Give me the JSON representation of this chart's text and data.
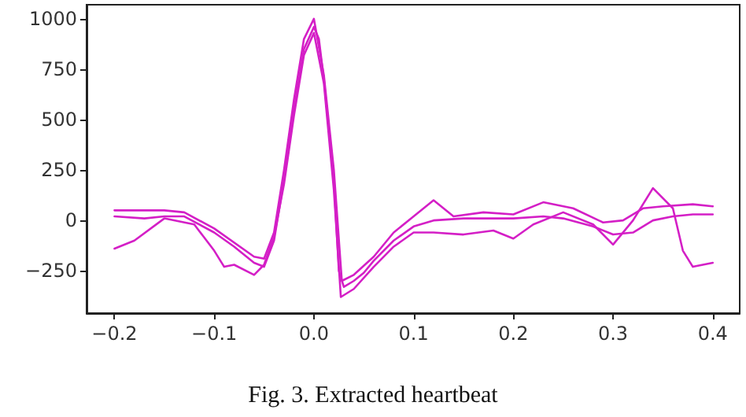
{
  "chart_data": {
    "type": "line",
    "annotations": [
      "Fig. 3. Extracted heartbeat"
    ],
    "xlim": [
      -0.228,
      0.427
    ],
    "ylim": [
      -460,
      1070
    ],
    "xticks": [
      {
        "value": -0.2,
        "label": "−0.2"
      },
      {
        "value": -0.1,
        "label": "−0.1"
      },
      {
        "value": 0,
        "label": "0.0"
      },
      {
        "value": 0.1,
        "label": "0.1"
      },
      {
        "value": 0.2,
        "label": "0.2"
      },
      {
        "value": 0.3,
        "label": "0.3"
      },
      {
        "value": 0.4,
        "label": "0.4"
      }
    ],
    "yticks": [
      {
        "value": -250,
        "label": "−250"
      },
      0,
      250,
      500,
      750,
      1000
    ],
    "grid": false,
    "marker": "none",
    "line_style": "solid",
    "series": [
      {
        "color": "#d41fc6",
        "x": [
          -0.2,
          -0.17,
          -0.15,
          -0.13,
          -0.1,
          -0.08,
          -0.06,
          -0.05,
          -0.04,
          -0.03,
          -0.02,
          -0.01,
          0,
          0.005,
          0.01,
          0.02,
          0.025,
          0.03,
          0.04,
          0.05,
          0.06,
          0.08,
          0.1,
          0.12,
          0.15,
          0.2,
          0.23,
          0.25,
          0.28,
          0.3,
          0.32,
          0.34,
          0.36,
          0.38,
          0.4
        ],
        "values": [
          20,
          10,
          20,
          20,
          -60,
          -130,
          -210,
          -230,
          -100,
          200,
          550,
          850,
          960,
          900,
          700,
          200,
          -250,
          -330,
          -300,
          -260,
          -200,
          -100,
          -30,
          0,
          10,
          10,
          20,
          10,
          -30,
          -70,
          -60,
          0,
          20,
          30,
          30
        ]
      },
      {
        "color": "#d41fc6",
        "x": [
          -0.2,
          -0.18,
          -0.15,
          -0.12,
          -0.1,
          -0.09,
          -0.08,
          -0.06,
          -0.05,
          -0.04,
          -0.03,
          -0.02,
          -0.01,
          0,
          0.01,
          0.02,
          0.027,
          0.04,
          0.06,
          0.08,
          0.1,
          0.12,
          0.15,
          0.18,
          0.2,
          0.22,
          0.25,
          0.28,
          0.3,
          0.32,
          0.34,
          0.36,
          0.37,
          0.38,
          0.4
        ],
        "values": [
          -140,
          -100,
          10,
          -20,
          -150,
          -230,
          -220,
          -270,
          -220,
          -80,
          180,
          520,
          820,
          930,
          680,
          150,
          -380,
          -340,
          -230,
          -130,
          -60,
          -60,
          -70,
          -50,
          -90,
          -20,
          40,
          -20,
          -120,
          0,
          160,
          60,
          -150,
          -230,
          -210
        ]
      },
      {
        "color": "#d41fc6",
        "x": [
          -0.2,
          -0.15,
          -0.13,
          -0.1,
          -0.06,
          -0.05,
          -0.04,
          -0.03,
          -0.02,
          -0.01,
          0,
          0.01,
          0.02,
          0.028,
          0.04,
          0.06,
          0.08,
          0.1,
          0.12,
          0.14,
          0.17,
          0.2,
          0.23,
          0.26,
          0.29,
          0.31,
          0.33,
          0.35,
          0.38,
          0.4
        ],
        "values": [
          50,
          50,
          40,
          -40,
          -180,
          -190,
          -60,
          250,
          600,
          900,
          1000,
          720,
          250,
          -300,
          -270,
          -180,
          -60,
          20,
          100,
          20,
          40,
          30,
          90,
          60,
          -10,
          0,
          60,
          70,
          80,
          70
        ]
      }
    ]
  }
}
